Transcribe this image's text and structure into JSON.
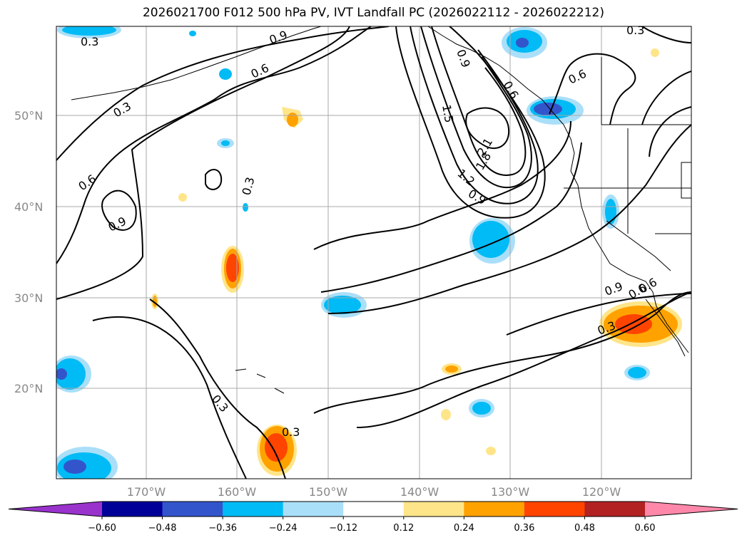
{
  "title": "2026021700 F012 500 hPa PV, IVT Landfall PC (2026022112 - 2026022212)",
  "lat_labels": [
    "50°N",
    "40°N",
    "30°N",
    "20°N"
  ],
  "lon_labels": [
    "170°W",
    "160°W",
    "150°W",
    "140°W",
    "130°W",
    "120°W"
  ],
  "colorbar": {
    "ticks": [
      "−0.60",
      "−0.48",
      "−0.36",
      "−0.24",
      "−0.12",
      "0.12",
      "0.24",
      "0.36",
      "0.48",
      "0.60"
    ],
    "colors": [
      "#9933cc",
      "#000099",
      "#3355cc",
      "#00bbf5",
      "#aadff9",
      "#ffffff",
      "#ffe58a",
      "#ffa200",
      "#ff4400",
      "#b22222",
      "#ff88aa"
    ]
  },
  "contour_labels": [
    "0.3",
    "0.3",
    "0.3",
    "0.3",
    "0.3",
    "0.3",
    "0.3",
    "0.6",
    "0.6",
    "0.6",
    "0.6",
    "0.9",
    "0.9",
    "0.9",
    "0.9",
    "1.2",
    "1.5",
    "1.8",
    "2.1",
    "0.6",
    "0.9",
    "0.6"
  ],
  "fill_colors": {
    "neg1": "#aadff9",
    "neg2": "#00bbf5",
    "neg3": "#3355cc",
    "neg4": "#000099",
    "pos1": "#ffe58a",
    "pos2": "#ffa200",
    "pos3": "#ff4400"
  }
}
